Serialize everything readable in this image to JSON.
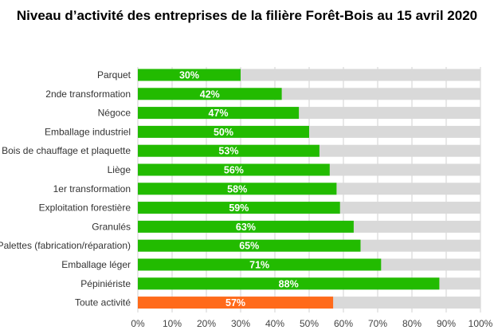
{
  "chart_data": {
    "type": "bar",
    "orientation": "horizontal",
    "stacked_background": true,
    "title": "Niveau d’activité des entreprises de la filière Forêt-Bois au 15 avril 2020",
    "xlabel": "",
    "ylabel": "",
    "xlim": [
      0,
      100
    ],
    "x_ticks": [
      "0%",
      "10%",
      "20%",
      "30%",
      "40%",
      "50%",
      "60%",
      "70%",
      "80%",
      "90%",
      "100%"
    ],
    "grid": true,
    "categories": [
      "Parquet",
      "2nde transformation",
      "Négoce",
      "Emballage industriel",
      "Bois de chauffage et plaquette",
      "Liège",
      "1er transformation",
      "Exploitation forestière",
      "Granulés",
      "Palettes (fabrication/réparation)",
      "Emballage léger",
      "Pépiniériste",
      "Toute activité"
    ],
    "values": [
      30,
      42,
      47,
      50,
      53,
      56,
      58,
      59,
      63,
      65,
      71,
      88,
      57
    ],
    "value_labels": [
      "30%",
      "42%",
      "47%",
      "50%",
      "53%",
      "56%",
      "58%",
      "59%",
      "63%",
      "65%",
      "71%",
      "88%",
      "57%"
    ],
    "colors": {
      "bar": "#22bb00",
      "highlight_bar": "#ff6a1a",
      "highlight_category": "Toute activité",
      "background_bar": "#d9d9d9",
      "grid": "#d0d0d0",
      "data_label": "#ffffff"
    }
  }
}
